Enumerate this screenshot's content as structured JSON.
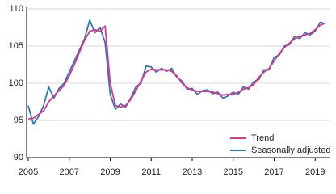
{
  "chart_data": {
    "type": "line",
    "x": [
      2005,
      2005.25,
      2005.5,
      2005.75,
      2006,
      2006.25,
      2006.5,
      2006.75,
      2007,
      2007.25,
      2007.5,
      2007.75,
      2008,
      2008.25,
      2008.5,
      2008.75,
      2009,
      2009.25,
      2009.5,
      2009.75,
      2010,
      2010.25,
      2010.5,
      2010.75,
      2011,
      2011.25,
      2011.5,
      2011.75,
      2012,
      2012.25,
      2012.5,
      2012.75,
      2013,
      2013.25,
      2013.5,
      2013.75,
      2014,
      2014.25,
      2014.5,
      2014.75,
      2015,
      2015.25,
      2015.5,
      2015.75,
      2016,
      2016.25,
      2016.5,
      2016.75,
      2017,
      2017.25,
      2017.5,
      2017.75,
      2018,
      2018.25,
      2018.5,
      2018.75,
      2019,
      2019.25,
      2019.5
    ],
    "series": [
      {
        "name": "Seasonally adjusted",
        "color": "#2a7ab8",
        "values": [
          97,
          94.5,
          95.5,
          97,
          99.5,
          98,
          99.3,
          100,
          101.5,
          103,
          104.5,
          106,
          108.5,
          106.8,
          107.5,
          105.5,
          98.5,
          96.5,
          97.2,
          96.8,
          98,
          99.5,
          100,
          102.3,
          102.2,
          101.5,
          102,
          101.6,
          102,
          100.8,
          100.3,
          99.2,
          99.3,
          98.5,
          99,
          99.1,
          98.6,
          98.8,
          98,
          98.3,
          98.8,
          98.5,
          99.5,
          99.2,
          100.2,
          100.5,
          101.8,
          101.8,
          103.5,
          103.8,
          105,
          105.2,
          106.3,
          106,
          106.8,
          106.5,
          107,
          108.2,
          108
        ]
      },
      {
        "name": "Trend",
        "color": "#e0348c",
        "values": [
          95.2,
          95.3,
          95.8,
          96.3,
          97.5,
          98.3,
          99,
          99.7,
          101,
          102.5,
          104.2,
          105.8,
          107,
          107.2,
          107,
          107.7,
          100,
          97,
          96.8,
          97,
          97.8,
          99,
          100.3,
          101.5,
          101.9,
          101.8,
          101.8,
          101.8,
          101.6,
          101,
          100,
          99.4,
          99.1,
          98.9,
          98.9,
          98.9,
          98.8,
          98.6,
          98.4,
          98.5,
          98.5,
          98.8,
          99.2,
          99.4,
          99.8,
          100.8,
          101.5,
          102,
          103,
          104,
          104.8,
          105.4,
          106,
          106.3,
          106.5,
          106.7,
          107.2,
          107.8,
          108.1
        ]
      }
    ],
    "xlim": [
      2005,
      2019.7
    ],
    "xticks": [
      2005,
      2007,
      2009,
      2011,
      2013,
      2015,
      2017,
      2019
    ],
    "ylim": [
      90,
      110
    ],
    "yticks": [
      90,
      95,
      100,
      105,
      110
    ],
    "grid": true,
    "legend": "lower right"
  }
}
